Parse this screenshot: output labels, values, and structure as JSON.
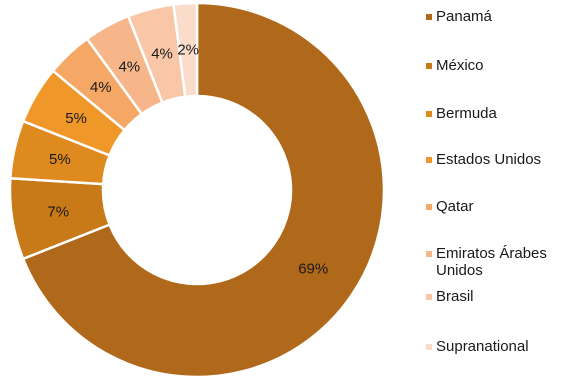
{
  "chart_data": {
    "type": "pie",
    "donut": true,
    "categories": [
      "Panamá",
      "México",
      "Bermuda",
      "Estados Unidos",
      "Qatar",
      "Emiratos Árabes Unidos",
      "Brasil",
      "Supranational"
    ],
    "values": [
      69,
      7,
      5,
      5,
      4,
      4,
      4,
      2
    ],
    "labels": [
      "69%",
      "7%",
      "5%",
      "5%",
      "4%",
      "4%",
      "4%",
      "2%"
    ],
    "colors": [
      "#B0681A",
      "#C87A18",
      "#DE8A1E",
      "#F0972A",
      "#F5A765",
      "#F7B58A",
      "#F9C7A7",
      "#FBDCCB"
    ],
    "legend_position": "right"
  }
}
